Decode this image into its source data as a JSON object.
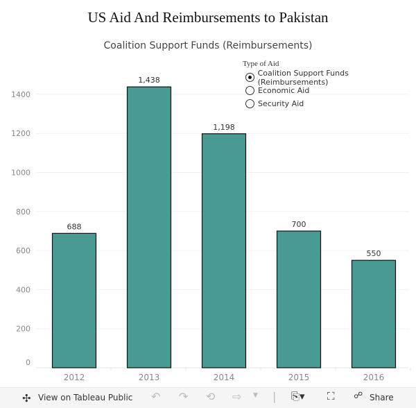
{
  "title": "US Aid And Reimbursements to Pakistan",
  "legend": {
    "title": "Type of Aid",
    "options": [
      {
        "label": "Coalition Support Funds (Reimbursements)",
        "selected": true
      },
      {
        "label": "Economic Aid",
        "selected": false
      },
      {
        "label": "Security Aid",
        "selected": false
      }
    ]
  },
  "chart_data": {
    "type": "bar",
    "title": "Coalition Support Funds (Reimbursements)",
    "categories": [
      "2012",
      "2013",
      "2014",
      "2015",
      "2016"
    ],
    "values": [
      688,
      1438,
      1198,
      700,
      550
    ],
    "data_labels": [
      "688",
      "1,438",
      "1,198",
      "700",
      "550"
    ],
    "ylim": [
      0,
      1500
    ],
    "yticks": [
      0,
      200,
      400,
      600,
      800,
      1000,
      1200,
      1400
    ],
    "xlabel": "",
    "ylabel": "",
    "grid": true,
    "color": "#4a9a94",
    "legend_placement": "top-right"
  },
  "toolbar": {
    "view_label": "View on Tableau Public",
    "share_label": "Share"
  }
}
